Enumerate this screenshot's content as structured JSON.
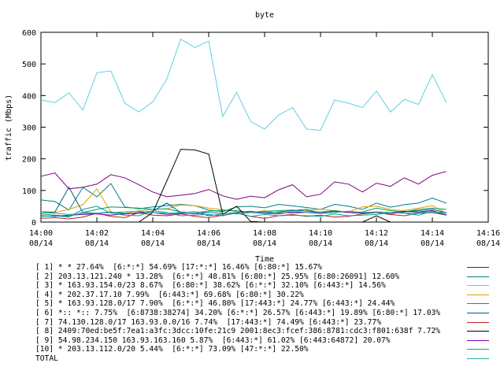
{
  "chart_data": {
    "type": "line",
    "title": "byte",
    "xlabel": "Time",
    "ylabel": "traffic (Mbps)",
    "ylim": [
      0,
      600
    ],
    "yticks": [
      0,
      100,
      200,
      300,
      400,
      500,
      600
    ],
    "xticks": [
      {
        "time": "14:00",
        "date": "08/14"
      },
      {
        "time": "14:02",
        "date": "08/14"
      },
      {
        "time": "14:04",
        "date": "08/14"
      },
      {
        "time": "14:06",
        "date": "08/14"
      },
      {
        "time": "14:08",
        "date": "08/14"
      },
      {
        "time": "14:10",
        "date": "08/14"
      },
      {
        "time": "14:12",
        "date": "08/14"
      },
      {
        "time": "14:14",
        "date": "08/14"
      },
      {
        "time": "14:16",
        "date": "08/14"
      }
    ],
    "xlim_minutes": [
      0,
      16
    ],
    "x_minutes": [
      0,
      0.5,
      1,
      1.5,
      2,
      2.5,
      3,
      3.5,
      4,
      4.5,
      5,
      5.5,
      6,
      6.5,
      7,
      7.5,
      8,
      8.5,
      9,
      9.5,
      10,
      10.5,
      11,
      11.5,
      12,
      12.5,
      13,
      13.5,
      14,
      14.5
    ],
    "grid": false,
    "legend_position": "bottom",
    "series": [
      {
        "name": "[ 1] * * 27.64%  [6:*:*] 54.69% [17:*:*] 16.46% [6:80:*] 15.67%",
        "color": "#800080",
        "values": [
          145,
          155,
          105,
          110,
          120,
          150,
          140,
          118,
          95,
          80,
          85,
          90,
          103,
          83,
          72,
          82,
          77,
          102,
          118,
          80,
          88,
          127,
          120,
          95,
          123,
          113,
          140,
          120,
          148,
          160
        ]
      },
      {
        "name": "[ 2] 203.13.121.240 * 13.28%  [6:*:*] 48.81% [6:80:*] 25.95% [6:80:26091] 12.60%",
        "color": "#008080",
        "values": [
          70,
          65,
          38,
          110,
          80,
          122,
          48,
          42,
          48,
          52,
          56,
          52,
          38,
          33,
          48,
          50,
          45,
          56,
          51,
          46,
          40,
          56,
          50,
          40,
          60,
          47,
          55,
          60,
          76,
          60
        ]
      },
      {
        "name": "[ 3] * 163.93.154.0/23 8.67%  [6:80:*] 38.62% [6:*:*] 32.10% [6:443:*] 14.56%",
        "color": "#5fcfe0",
        "values": [
          386,
          378,
          408,
          354,
          472,
          478,
          376,
          348,
          380,
          452,
          578,
          552,
          572,
          334,
          410,
          318,
          294,
          338,
          362,
          294,
          290,
          386,
          376,
          362,
          414,
          348,
          388,
          372,
          466,
          378
        ]
      },
      {
        "name": "[ 4] * 202.37.17.10 7.99%  [6:443:*] 69.68% [6:80:*] 30.22%",
        "color": "#e0a000",
        "values": [
          34,
          30,
          40,
          55,
          105,
          32,
          28,
          36,
          40,
          42,
          54,
          52,
          44,
          39,
          33,
          30,
          36,
          28,
          32,
          36,
          41,
          36,
          32,
          48,
          50,
          40,
          36,
          44,
          52,
          28
        ]
      },
      {
        "name": "[ 5] * 163.93.128.0/17 7.90%  [6:*:*] 46.80% [17:443:*] 24.77% [6:443:*] 24.44%",
        "color": "#00a060",
        "values": [
          26,
          22,
          18,
          30,
          40,
          48,
          46,
          44,
          40,
          42,
          32,
          30,
          34,
          37,
          36,
          30,
          34,
          36,
          38,
          34,
          32,
          36,
          30,
          32,
          44,
          36,
          32,
          40,
          44,
          40
        ]
      },
      {
        "name": "[ 6] *:: *:: 7.75%  [6:8738:38274] 34.20% [6:*:*] 26.57% [6:443:*] 19.89% [6:80:*] 17.03%",
        "color": "#006080",
        "values": [
          30,
          32,
          110,
          30,
          28,
          32,
          26,
          30,
          34,
          60,
          30,
          32,
          20,
          26,
          30,
          34,
          28,
          32,
          36,
          40,
          28,
          30,
          34,
          28,
          30,
          26,
          32,
          36,
          40,
          30
        ]
      },
      {
        "name": "[ 7] 74.130.128.0/17 163.93.0.0/16 7.74%  [17:443:*] 74.49% [6:443:*] 23.77%",
        "color": "#c02020",
        "values": [
          12,
          14,
          10,
          16,
          28,
          18,
          14,
          30,
          22,
          20,
          26,
          18,
          14,
          22,
          28,
          18,
          12,
          20,
          24,
          18,
          22,
          16,
          18,
          26,
          30,
          24,
          20,
          28,
          30,
          22
        ]
      },
      {
        "name": "[ 8] 2409:70ed:be5f:7ea1:a3fc:3dcc:10fe:21c9 2001:8ec3:fcef:386:8781:cdc3:f801:638f 7.72%",
        "color": "#000000",
        "values": [
          0,
          0,
          0,
          0,
          0,
          0,
          0,
          0,
          30,
          130,
          230,
          228,
          215,
          25,
          50,
          2,
          0,
          0,
          0,
          0,
          0,
          0,
          0,
          0,
          20,
          0,
          0,
          0,
          0,
          0
        ]
      },
      {
        "name": "[ 9] 54.98.234.150 163.93.163.160 5.87%  [6:443:*] 61.02% [6:443:64872] 20.07%",
        "color": "#8000c0",
        "values": [
          20,
          18,
          22,
          24,
          26,
          22,
          26,
          28,
          30,
          24,
          28,
          26,
          30,
          28,
          26,
          30,
          28,
          26,
          32,
          30,
          28,
          34,
          30,
          28,
          32,
          30,
          34,
          32,
          36,
          24
        ]
      },
      {
        "name": "[10] * 203.13.112.0/20 5.44%  [6:*:*] 73.09% [47:*:*] 22.50%",
        "color": "#00a0a0",
        "values": [
          18,
          20,
          16,
          40,
          50,
          28,
          22,
          20,
          36,
          30,
          20,
          22,
          24,
          20,
          30,
          18,
          24,
          20,
          22,
          20,
          18,
          26,
          20,
          22,
          24,
          30,
          28,
          22,
          34,
          22
        ]
      },
      {
        "name": "TOTAL",
        "color": "#20b0a0",
        "values": [
          30,
          28,
          24,
          26,
          28,
          30,
          32,
          34,
          30,
          28,
          30,
          32,
          30,
          28,
          26,
          30,
          32,
          30,
          28,
          30,
          32,
          30,
          34,
          30,
          32,
          30,
          28,
          30,
          32,
          30
        ]
      }
    ]
  }
}
